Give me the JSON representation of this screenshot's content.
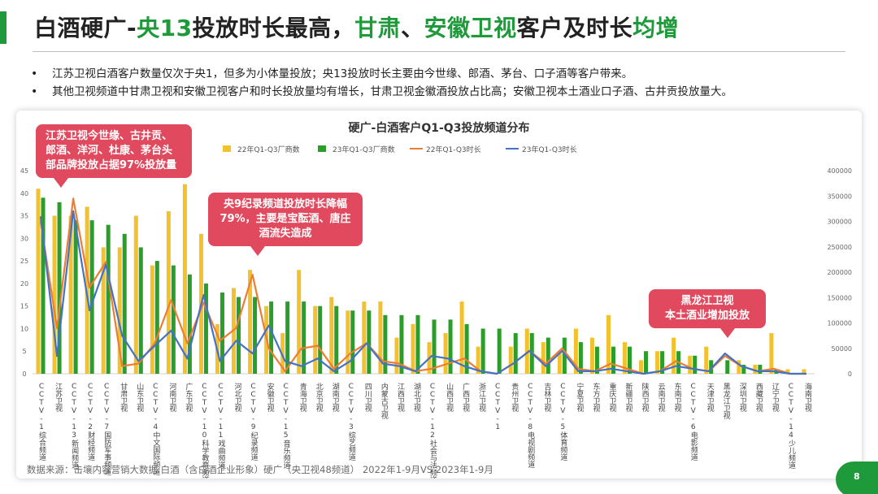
{
  "header": {
    "title_parts": [
      "白酒硬广-",
      "央13",
      "投放时长最高，",
      "甘肃",
      "、",
      "安徽卫视",
      "客户及时长",
      "均增"
    ]
  },
  "bullets": [
    "江苏卫视白酒客户数量仅次于央1，但多为小体量投放；央13投放时长主要由今世缘、郎酒、茅台、口子酒等客户带来。",
    "其他卫视频道中甘肃卫视和安徽卫视客户和时长投放量均有增长，甘肃卫视金徽酒投放占比高；安徽卫视本土酒业口子酒、古井贡投放量大。"
  ],
  "callouts": {
    "jiangsu": [
      "江苏卫视今世缘、古井贡、",
      "郎酒、洋河、杜康、茅台头",
      "部品牌投放占据97%投放量"
    ],
    "cctv9": [
      "央9纪录频道投放时长降幅",
      "79%，主要是宝酝酒、唐庄",
      "酒流失造成"
    ],
    "heilongjiang": [
      "黑龙江卫视",
      "本土酒业增加投放"
    ]
  },
  "footnote": "数据来源：击壤内容营销大数据    白酒（含白酒企业形象）硬广（央卫视48频道） 2022年1-9月VS 2023年1-9月",
  "page_number": "8",
  "colors": {
    "accent_green": "#1f9a3a",
    "bar_2022": "#f2c12e",
    "bar_2023": "#2a9d2a",
    "line_2022": "#ed7d31",
    "line_2023": "#4472c4",
    "callout": "#e0495e"
  },
  "chart_data": {
    "type": "bar",
    "title": "硬广-白酒客户Q1-Q3投放频道分布",
    "categories": [
      "CCTV-1综合频道",
      "江苏卫视",
      "CCTV-13新闻频道",
      "CCTV-2财经频道",
      "CCTV-7国防军事频道",
      "甘肃卫视",
      "山东卫视",
      "CCTV-4中文国际频道",
      "河南卫视",
      "广东卫视",
      "CCTV-10科学教育频道",
      "CCTV-11戏曲频道",
      "河北卫视",
      "CCTV-9纪录频道",
      "安徽卫视",
      "CCTV-15音乐频道",
      "青海卫视",
      "北京卫视",
      "湖南卫视",
      "CCTV-3综艺频道",
      "四川卫视",
      "内蒙古卫视",
      "江西卫视",
      "湖北卫视",
      "CCTV-12社会与法频道",
      "山西卫视",
      "广西卫视",
      "浙江卫视",
      "CCTV-1",
      "贵州卫视",
      "CCTV-8电视剧频道",
      "吉林卫视",
      "CCTV-5体育频道",
      "宁夏卫视",
      "东方卫视",
      "重庆卫视",
      "新疆卫视",
      "陕西卫视",
      "云南卫视",
      "东南卫视",
      "CCTV-6电影频道",
      "天津卫视",
      "黑龙江卫视",
      "深圳卫视",
      "西藏卫视",
      "辽宁卫视",
      "CCTV-14少儿频道",
      "海南卫视"
    ],
    "y_left_ticks": [
      "0",
      "5",
      "10",
      "15",
      "20",
      "25",
      "30",
      "35",
      "40",
      "45"
    ],
    "y_right_ticks": [
      "0",
      "50000",
      "100000",
      "150000",
      "200000",
      "250000",
      "300000",
      "350000",
      "400000"
    ],
    "ylim_left": [
      0,
      45
    ],
    "ylim_right": [
      0,
      400000
    ],
    "legend_position": "top",
    "series": [
      {
        "name": "22年Q1-Q3厂商数",
        "kind": "bar",
        "axis": "left",
        "values": [
          41,
          35,
          35,
          37,
          28,
          28,
          35,
          24,
          36,
          42,
          31,
          11,
          19,
          23,
          15,
          9,
          23,
          15,
          17,
          14,
          16,
          16,
          8,
          11,
          7,
          9,
          16,
          6,
          0,
          6,
          10,
          7,
          5,
          10,
          8,
          13,
          7,
          3,
          5,
          8,
          4,
          6,
          0,
          3,
          2,
          9,
          1,
          1
        ]
      },
      {
        "name": "23年Q1-Q3厂商数",
        "kind": "bar",
        "axis": "left",
        "values": [
          39,
          38,
          34,
          34,
          33,
          31,
          28,
          25,
          24,
          22,
          20,
          18,
          17,
          17,
          16,
          16,
          16,
          15,
          15,
          14,
          14,
          13,
          13,
          13,
          12,
          12,
          11,
          10,
          10,
          9,
          9,
          8,
          8,
          7,
          6,
          6,
          6,
          5,
          5,
          5,
          4,
          3,
          3,
          2,
          2,
          1,
          0,
          0
        ]
      },
      {
        "name": "22年Q1-Q3时长",
        "kind": "line",
        "axis": "right",
        "values": [
          300000,
          90000,
          345000,
          170000,
          220000,
          15000,
          20000,
          60000,
          145000,
          60000,
          140000,
          65000,
          90000,
          195000,
          50000,
          5000,
          50000,
          55000,
          10000,
          40000,
          60000,
          25000,
          20000,
          5000,
          10000,
          20000,
          30000,
          5000,
          0,
          20000,
          45000,
          20000,
          50000,
          10000,
          5000,
          20000,
          10000,
          0,
          5000,
          25000,
          10000,
          5000,
          35000,
          15000,
          5000,
          10000,
          0,
          0
        ]
      },
      {
        "name": "23年Q1-Q3时长",
        "kind": "line",
        "axis": "right",
        "values": [
          310000,
          35000,
          320000,
          125000,
          215000,
          75000,
          25000,
          55000,
          85000,
          30000,
          155000,
          25000,
          65000,
          40000,
          95000,
          25000,
          15000,
          30000,
          5000,
          25000,
          60000,
          20000,
          15000,
          5000,
          35000,
          30000,
          15000,
          5000,
          0,
          20000,
          45000,
          15000,
          45000,
          5000,
          5000,
          10000,
          5000,
          0,
          5000,
          15000,
          10000,
          5000,
          40000,
          15000,
          5000,
          5000,
          0,
          0
        ]
      }
    ]
  }
}
